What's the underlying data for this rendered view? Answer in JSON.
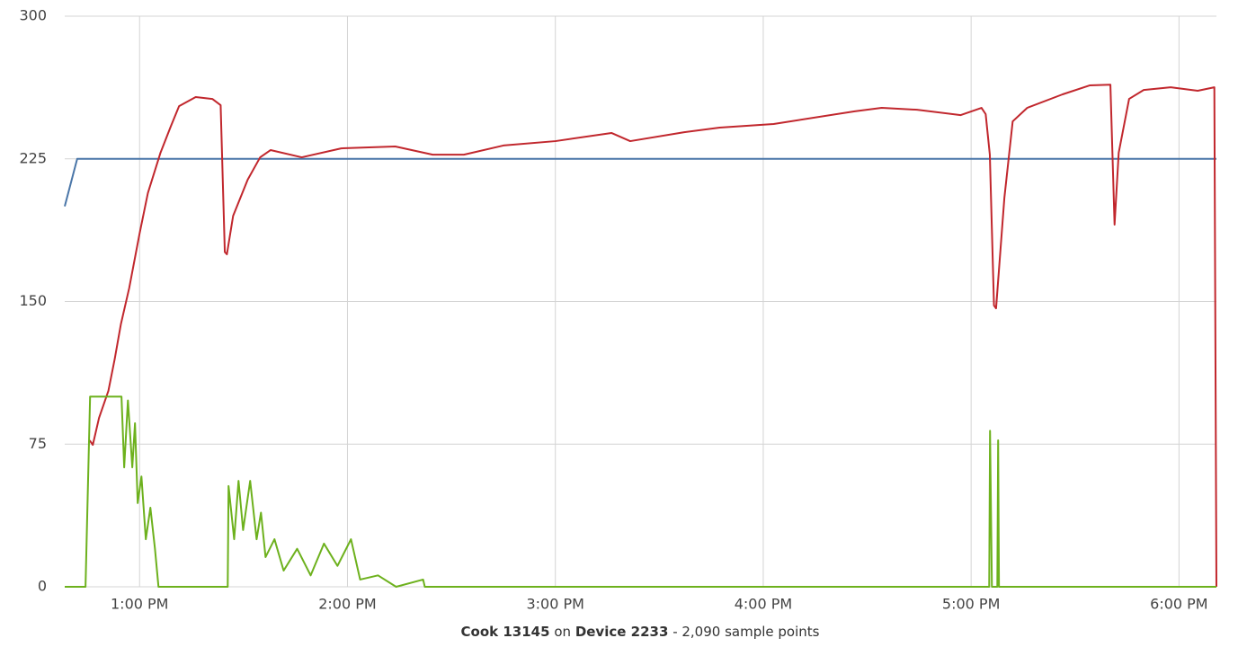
{
  "chart_data": {
    "type": "line",
    "xlim": [
      12.64,
      18.18
    ],
    "xticks": [
      {
        "value": 13,
        "label": "1:00 PM"
      },
      {
        "value": 14,
        "label": "2:00 PM"
      },
      {
        "value": 15,
        "label": "3:00 PM"
      },
      {
        "value": 16,
        "label": "4:00 PM"
      },
      {
        "value": 17,
        "label": "5:00 PM"
      },
      {
        "value": 18,
        "label": "6:00 PM"
      }
    ],
    "ylim": [
      0,
      300
    ],
    "yticks": [
      0,
      75,
      150,
      225,
      300
    ],
    "grid": true,
    "series": [
      {
        "color": "#4a76a8",
        "x": [
          12.64,
          12.7,
          18.18
        ],
        "values": [
          200,
          225,
          225
        ]
      },
      {
        "color": "#c1272d",
        "x": [
          12.76,
          12.775,
          12.805,
          12.85,
          12.88,
          12.91,
          12.95,
          13.0,
          13.04,
          13.1,
          13.15,
          13.19,
          13.27,
          13.35,
          13.39,
          13.41,
          13.42,
          13.45,
          13.52,
          13.58,
          13.63,
          13.78,
          13.97,
          14.23,
          14.41,
          14.56,
          14.75,
          15.0,
          15.27,
          15.36,
          15.62,
          15.79,
          16.05,
          16.44,
          16.57,
          16.74,
          16.95,
          17.05,
          17.07,
          17.09,
          17.11,
          17.12,
          17.16,
          17.2,
          17.27,
          17.44,
          17.57,
          17.67,
          17.69,
          17.71,
          17.76,
          17.83,
          17.96,
          18.09,
          18.17,
          18.18
        ],
        "values": [
          77,
          74.6,
          88.8,
          103,
          119.5,
          138,
          157,
          185.7,
          207,
          228,
          242,
          252.7,
          257.5,
          256.5,
          253.2,
          176,
          174.8,
          195,
          214,
          225.8,
          229.6,
          225.8,
          230.5,
          231.5,
          227.2,
          227.2,
          232,
          234.3,
          238.6,
          234.3,
          239,
          241.4,
          243.3,
          250,
          251.8,
          250.8,
          248,
          251.8,
          248.5,
          227.2,
          147.9,
          146.4,
          204.5,
          244.7,
          251.8,
          258.9,
          263.6,
          264,
          190.4,
          228.2,
          256.5,
          261.2,
          262.6,
          260.8,
          262.6,
          0
        ]
      },
      {
        "color": "#6db11d",
        "x": [
          12.64,
          12.74,
          12.762,
          12.913,
          12.926,
          12.944,
          12.965,
          12.978,
          12.991,
          13.009,
          13.03,
          13.052,
          13.074,
          13.091,
          13.424,
          13.428,
          13.455,
          13.476,
          13.498,
          13.532,
          13.563,
          13.584,
          13.606,
          13.649,
          13.693,
          13.758,
          13.823,
          13.887,
          13.952,
          14.017,
          14.061,
          14.147,
          14.234,
          14.364,
          14.372,
          17.087,
          17.091,
          17.1,
          17.126,
          17.13,
          17.134,
          18.18
        ],
        "values": [
          0,
          0,
          100,
          100,
          62.8,
          98,
          62.8,
          86,
          44,
          58,
          25,
          41.6,
          20,
          0,
          0,
          53,
          25,
          55.7,
          29.8,
          55.7,
          25,
          39,
          15.6,
          25,
          8.5,
          20,
          6,
          22.7,
          11,
          25,
          3.8,
          6,
          0,
          3.8,
          0,
          0,
          82,
          0,
          0,
          77,
          0,
          0
        ]
      }
    ]
  },
  "footer": {
    "cook": "Cook 13145",
    "on": "on",
    "device": "Device 2233",
    "rest": "- 2,090 sample points"
  }
}
